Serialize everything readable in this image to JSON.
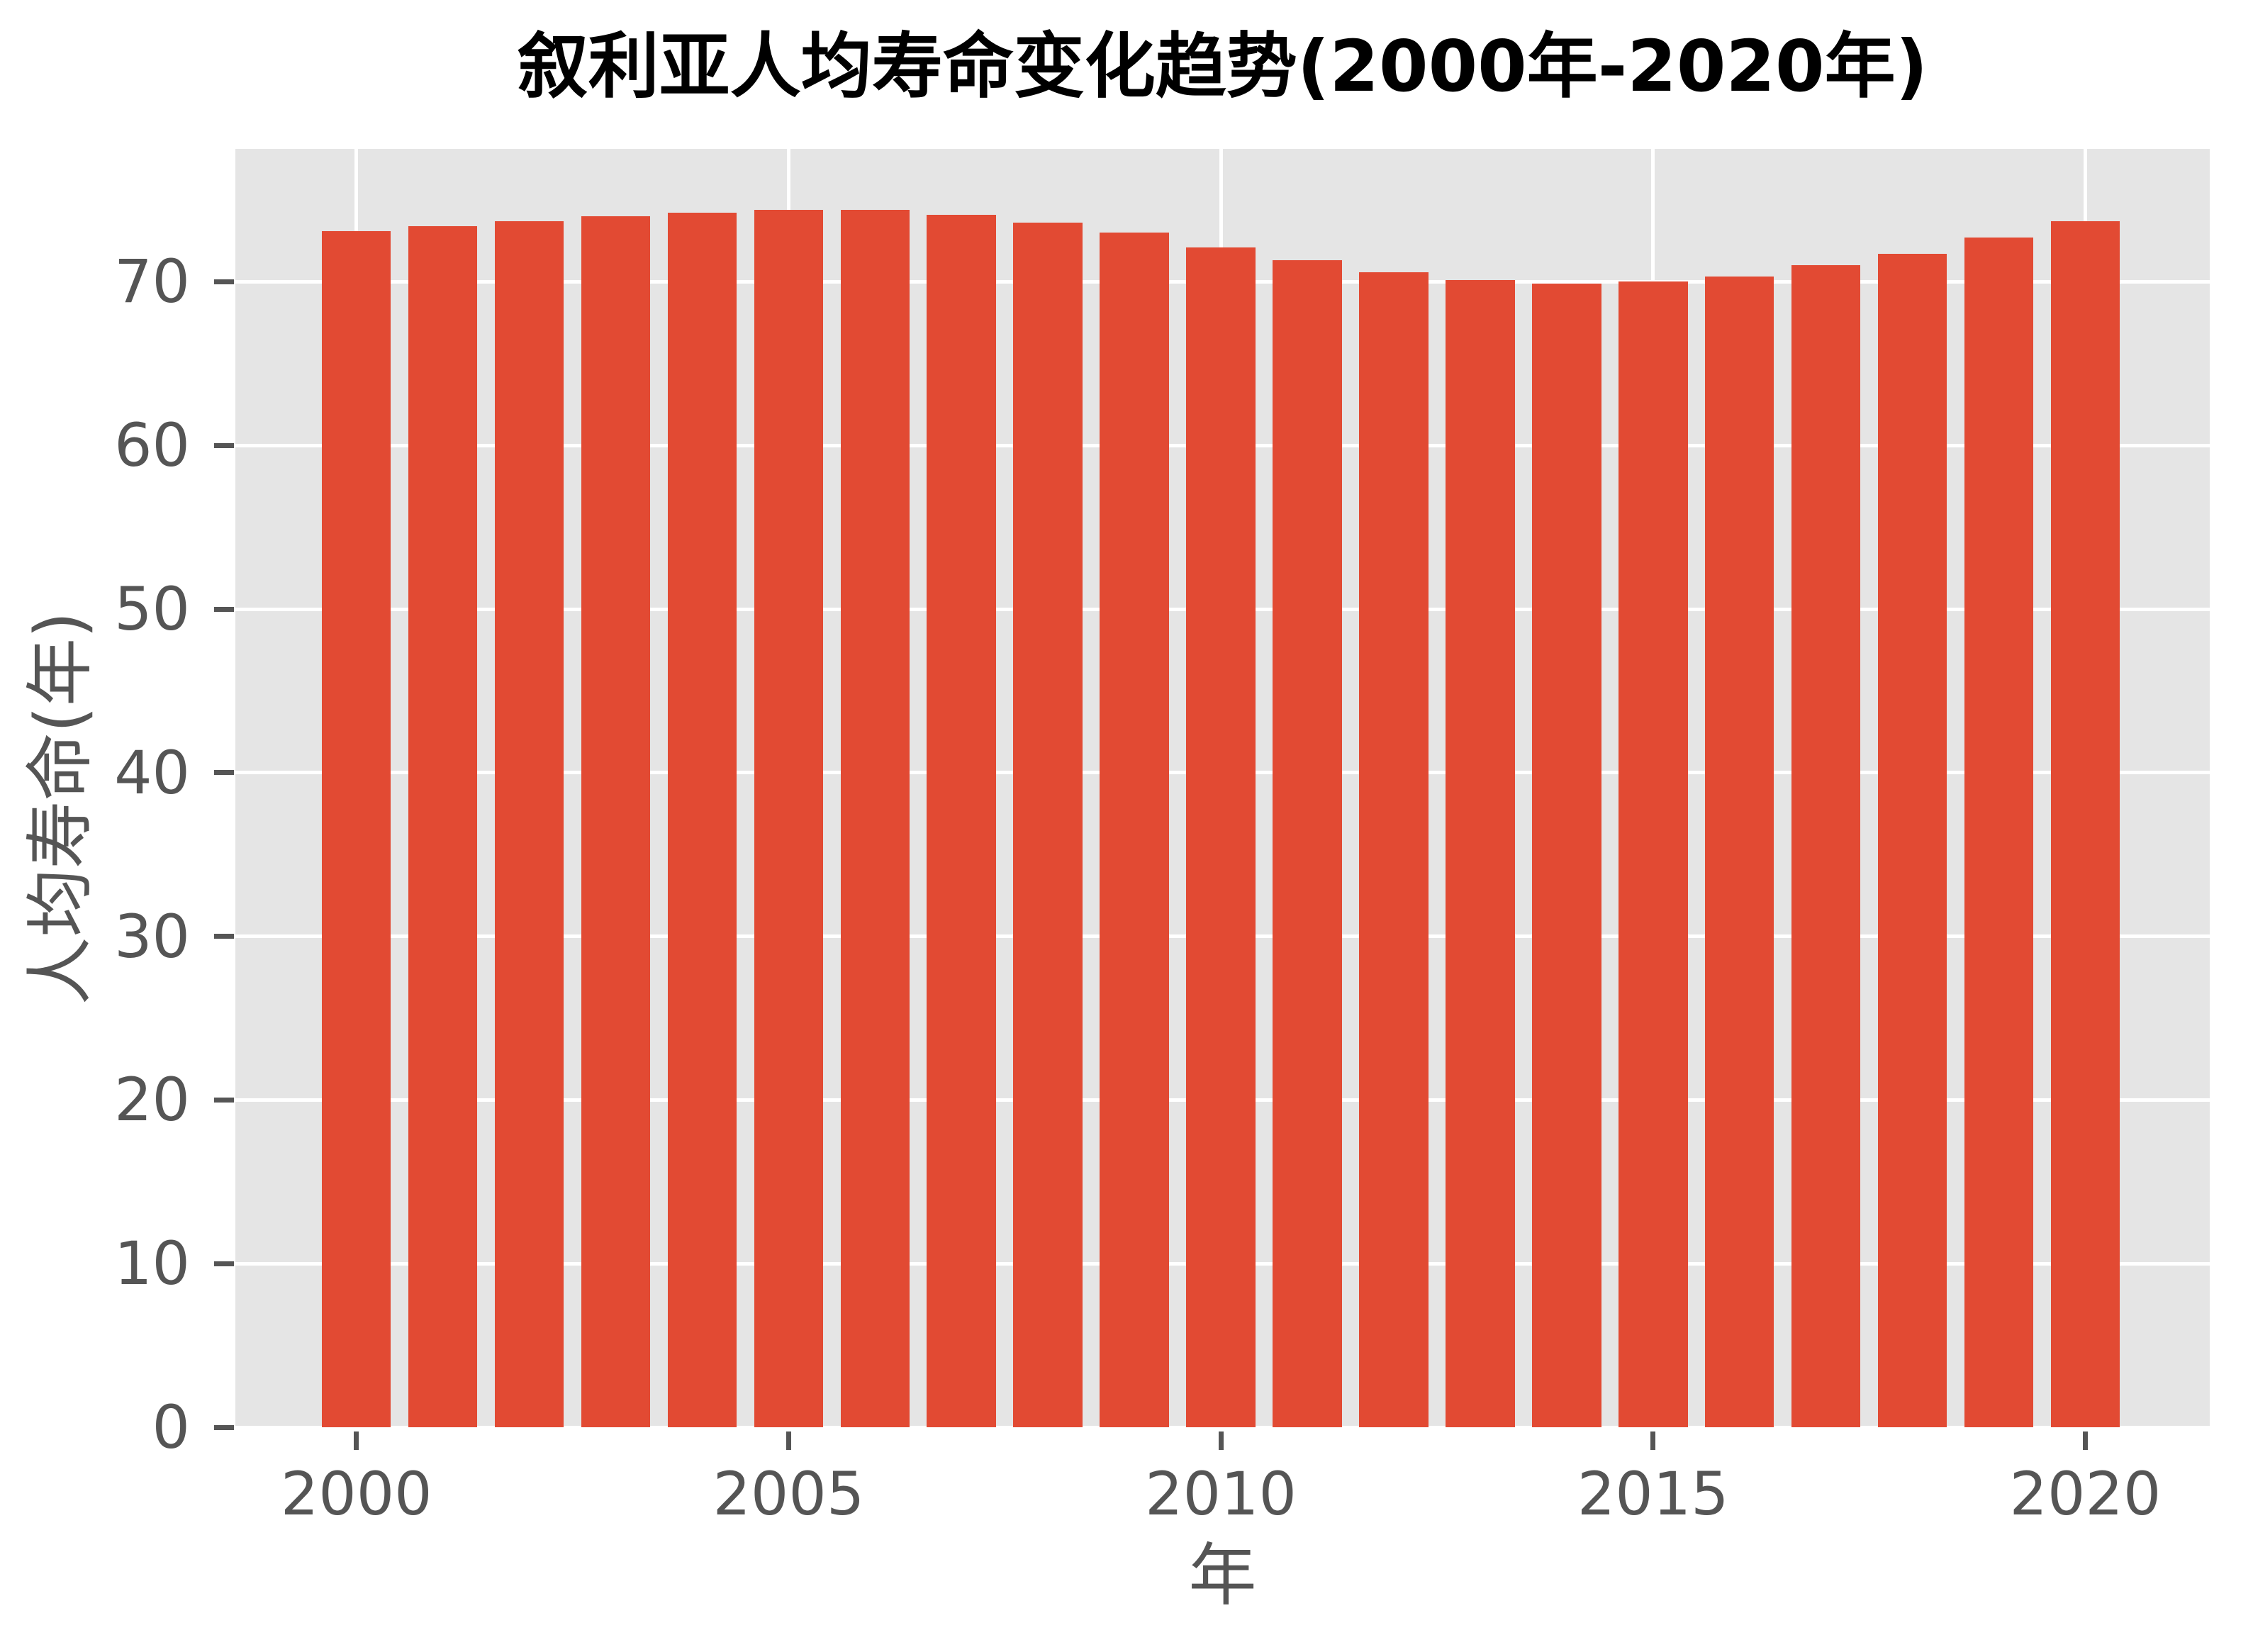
{
  "chart_data": {
    "type": "bar",
    "title": "叙利亚人均寿命变化趋势(2000年-2020年)",
    "xlabel": "年",
    "ylabel": "人均寿命(年)",
    "categories": [
      2000,
      2001,
      2002,
      2003,
      2004,
      2005,
      2006,
      2007,
      2008,
      2009,
      2010,
      2011,
      2012,
      2013,
      2014,
      2015,
      2016,
      2017,
      2018,
      2019,
      2020
    ],
    "values": [
      73.1,
      73.4,
      73.7,
      74.0,
      74.2,
      74.4,
      74.4,
      74.1,
      73.6,
      73.0,
      72.1,
      71.3,
      70.6,
      70.1,
      69.9,
      70.0,
      70.3,
      71.0,
      71.7,
      72.7,
      73.7
    ],
    "x_ticks": [
      2000,
      2005,
      2010,
      2015,
      2020
    ],
    "y_ticks": [
      0,
      10,
      20,
      30,
      40,
      50,
      60,
      70
    ],
    "xlim": [
      1998.6,
      2021.44
    ],
    "ylim": [
      0,
      78.12
    ],
    "bar_width_units": 0.8,
    "grid": true,
    "legend": "none",
    "colors": {
      "bar": "#e24a33",
      "plot_background": "#e5e5e5",
      "figure_background": "#ffffff",
      "gridline": "#ffffff",
      "axis_text": "#555555",
      "title_text": "#000000"
    }
  }
}
